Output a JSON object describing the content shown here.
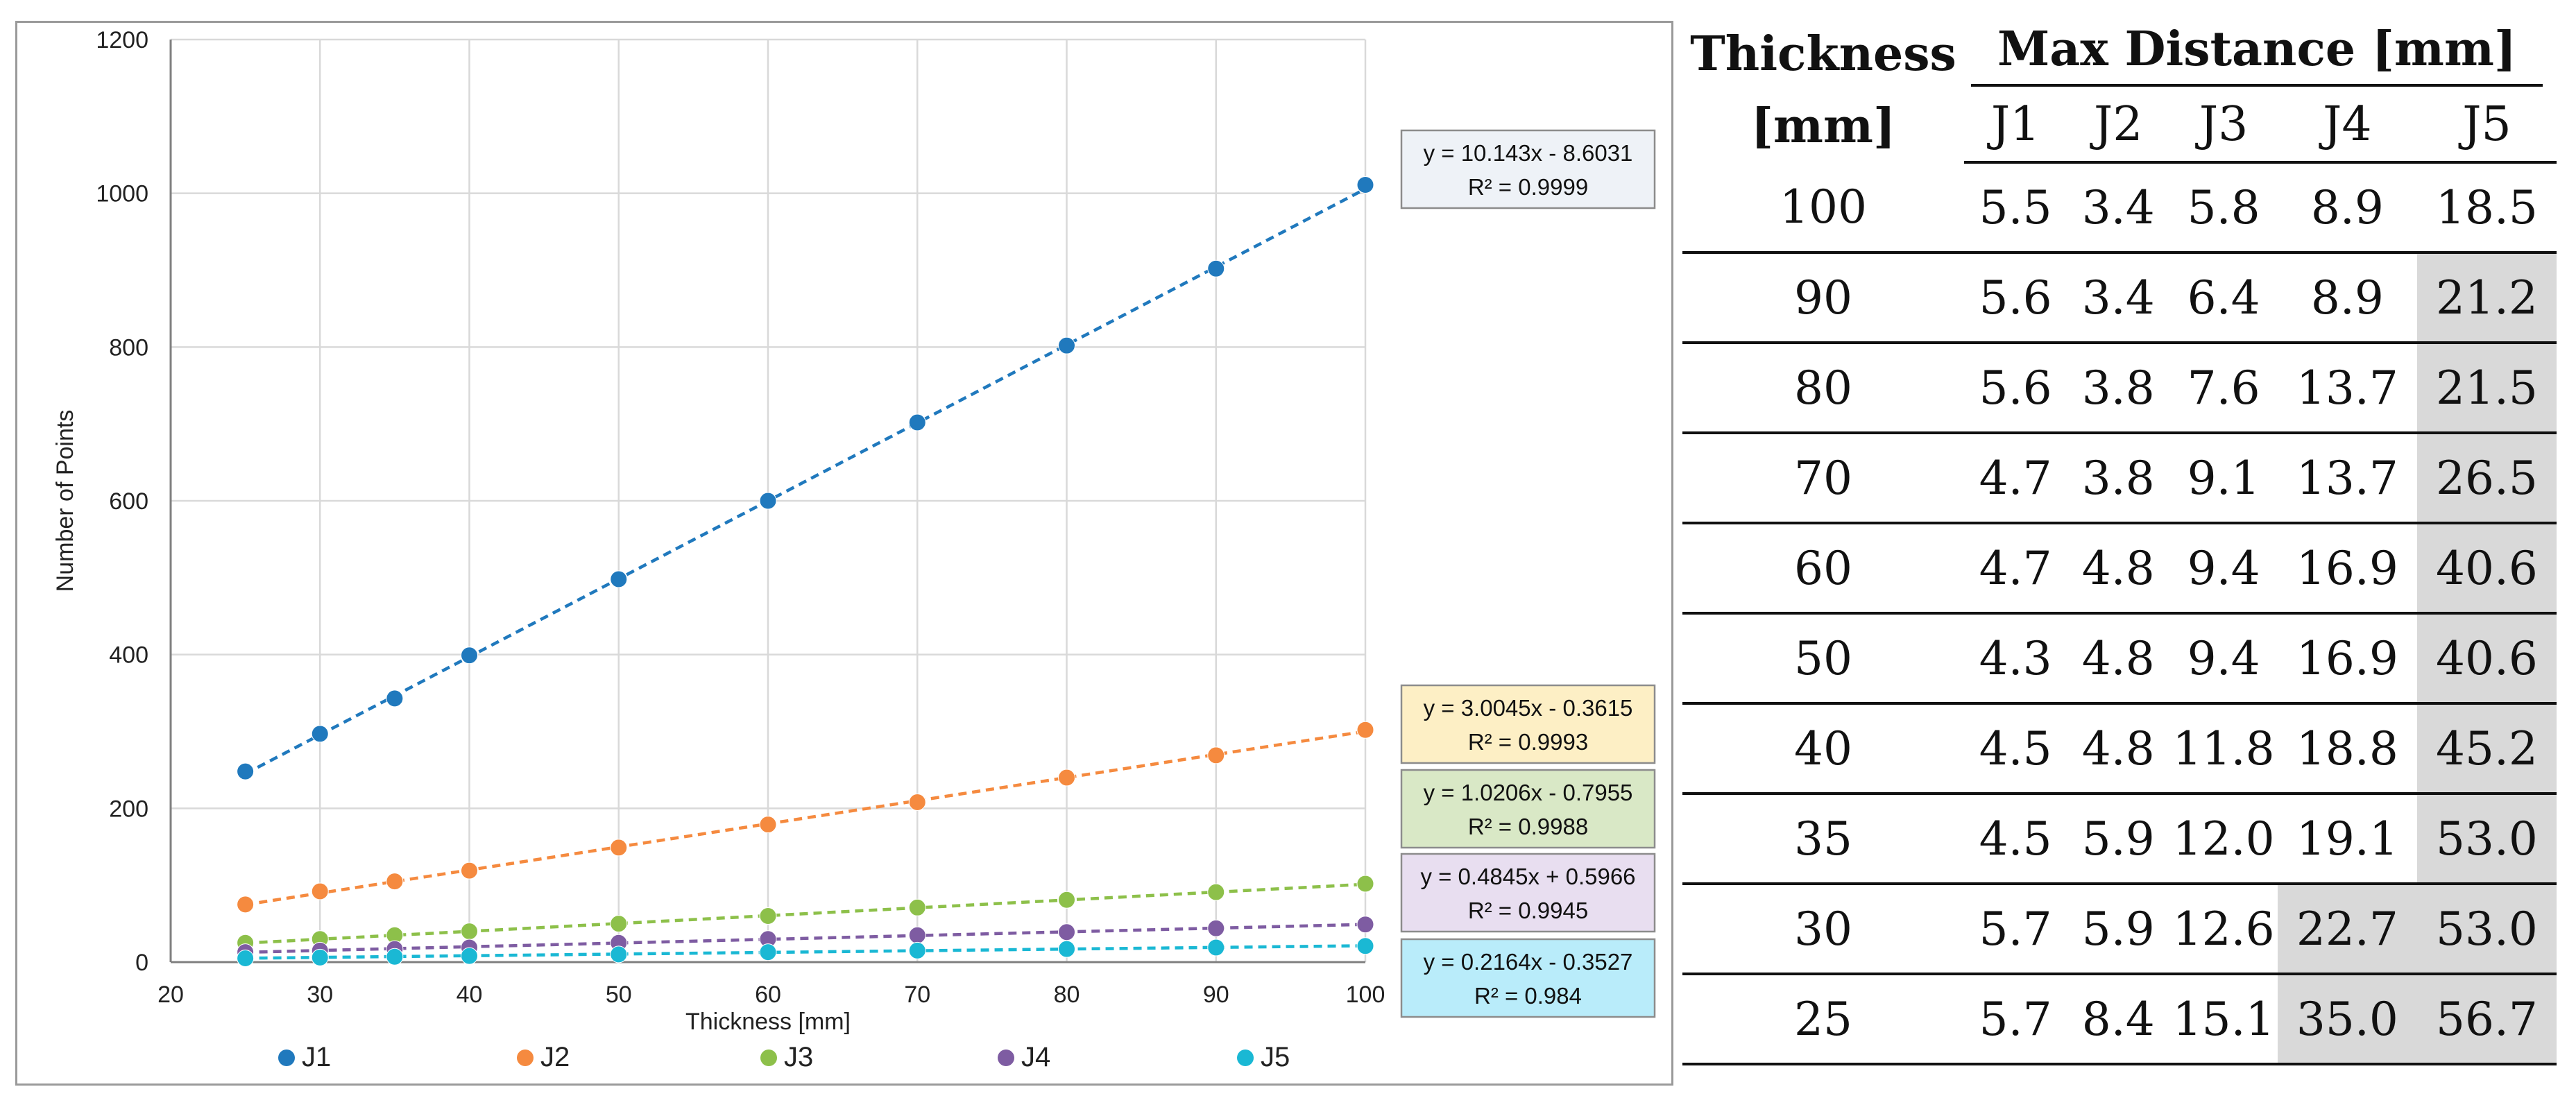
{
  "chart_data": {
    "type": "scatter",
    "xlabel": "Thickness [mm]",
    "ylabel": "Number of Points",
    "xlim": [
      20,
      100
    ],
    "ylim": [
      0,
      1200
    ],
    "xticks": [
      20,
      30,
      40,
      50,
      60,
      70,
      80,
      90,
      100
    ],
    "yticks": [
      0,
      200,
      400,
      600,
      800,
      1000,
      1200
    ],
    "grid": true,
    "legend_position": "bottom",
    "x": [
      25,
      30,
      35,
      40,
      50,
      60,
      70,
      80,
      90,
      100
    ],
    "series": [
      {
        "name": "J1",
        "color": "#2079bd",
        "values": [
          248,
          297,
          343,
          399,
          498,
          600,
          702,
          802,
          902,
          1011
        ],
        "trend": {
          "slope": 10.143,
          "intercept": -8.6031,
          "equation": "y = 10.143x - 8.6031",
          "r2": "R² = 0.9999",
          "box_fill": "#eef2f7"
        }
      },
      {
        "name": "J2",
        "color": "#f58a3f",
        "values": [
          75,
          92,
          105,
          119,
          149,
          179,
          208,
          240,
          269,
          302
        ],
        "trend": {
          "slope": 3.0045,
          "intercept": -0.3615,
          "equation": "y = 3.0045x - 0.3615",
          "r2": "R² = 0.9993",
          "box_fill": "#fdefc5"
        }
      },
      {
        "name": "J3",
        "color": "#8dc04a",
        "values": [
          25,
          30,
          35,
          40,
          50,
          60,
          71,
          81,
          91,
          102
        ],
        "trend": {
          "slope": 1.0206,
          "intercept": -0.7955,
          "equation": "y = 1.0206x - 0.7955",
          "r2": "R² = 0.9988",
          "box_fill": "#d9e8c6"
        }
      },
      {
        "name": "J4",
        "color": "#7e5ca2",
        "values": [
          13,
          15,
          17,
          19,
          25,
          30,
          35,
          39,
          44,
          49
        ],
        "trend": {
          "slope": 0.4845,
          "intercept": 0.5966,
          "equation": "y = 0.4845x + 0.5966",
          "r2": "R² = 0.9945",
          "box_fill": "#e8def0"
        }
      },
      {
        "name": "J5",
        "color": "#1ab8d4",
        "values": [
          5,
          6,
          7,
          8,
          10,
          13,
          15,
          17,
          19,
          21
        ],
        "trend": {
          "slope": 0.2164,
          "intercept": -0.3527,
          "equation": "y = 0.2164x - 0.3527",
          "r2": "R² = 0.984",
          "box_fill": "#b9ecfa"
        }
      }
    ]
  },
  "table": {
    "header_thickness_line1": "Thickness",
    "header_thickness_line2": "[mm]",
    "header_max": "Max Distance [mm]",
    "columns": [
      "J1",
      "J2",
      "J3",
      "J4",
      "J5"
    ],
    "rows": [
      {
        "thickness": "100",
        "values": [
          "5.5",
          "3.4",
          "5.8",
          "8.9",
          "18.5"
        ],
        "shaded": [
          false,
          false,
          false,
          false,
          false
        ]
      },
      {
        "thickness": "90",
        "values": [
          "5.6",
          "3.4",
          "6.4",
          "8.9",
          "21.2"
        ],
        "shaded": [
          false,
          false,
          false,
          false,
          true
        ]
      },
      {
        "thickness": "80",
        "values": [
          "5.6",
          "3.8",
          "7.6",
          "13.7",
          "21.5"
        ],
        "shaded": [
          false,
          false,
          false,
          false,
          true
        ]
      },
      {
        "thickness": "70",
        "values": [
          "4.7",
          "3.8",
          "9.1",
          "13.7",
          "26.5"
        ],
        "shaded": [
          false,
          false,
          false,
          false,
          true
        ]
      },
      {
        "thickness": "60",
        "values": [
          "4.7",
          "4.8",
          "9.4",
          "16.9",
          "40.6"
        ],
        "shaded": [
          false,
          false,
          false,
          false,
          true
        ]
      },
      {
        "thickness": "50",
        "values": [
          "4.3",
          "4.8",
          "9.4",
          "16.9",
          "40.6"
        ],
        "shaded": [
          false,
          false,
          false,
          false,
          true
        ]
      },
      {
        "thickness": "40",
        "values": [
          "4.5",
          "4.8",
          "11.8",
          "18.8",
          "45.2"
        ],
        "shaded": [
          false,
          false,
          false,
          false,
          true
        ]
      },
      {
        "thickness": "35",
        "values": [
          "4.5",
          "5.9",
          "12.0",
          "19.1",
          "53.0"
        ],
        "shaded": [
          false,
          false,
          false,
          false,
          true
        ]
      },
      {
        "thickness": "30",
        "values": [
          "5.7",
          "5.9",
          "12.6",
          "22.7",
          "53.0"
        ],
        "shaded": [
          false,
          false,
          false,
          true,
          true
        ]
      },
      {
        "thickness": "25",
        "values": [
          "5.7",
          "8.4",
          "15.1",
          "35.0",
          "56.7"
        ],
        "shaded": [
          false,
          false,
          false,
          true,
          true
        ]
      }
    ]
  }
}
